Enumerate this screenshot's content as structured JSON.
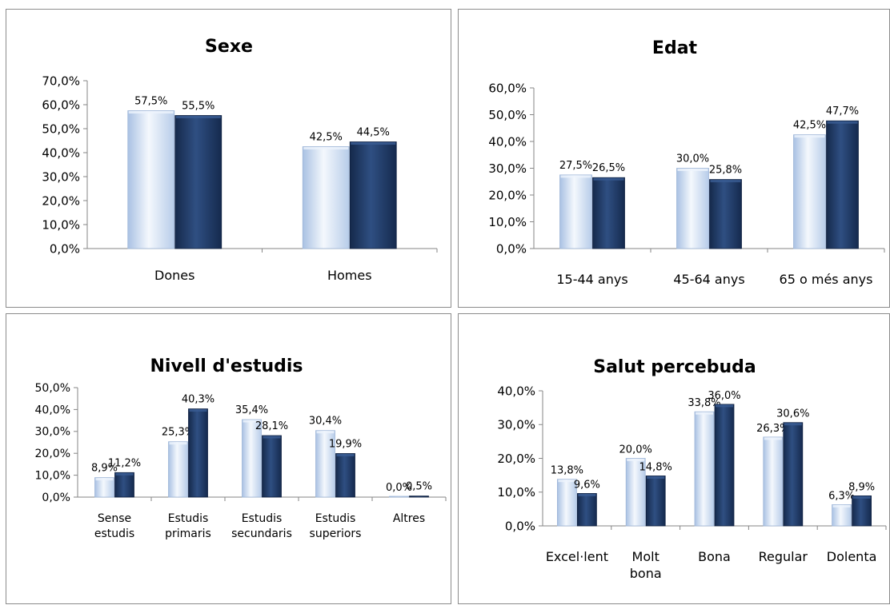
{
  "colors": {
    "series_light": "#c6d9f1",
    "series_dark": "#1f3864",
    "axis": "#868686",
    "border": "#8c8c8c"
  },
  "chart_data": [
    {
      "type": "bar",
      "title": "Sexe",
      "categories": [
        "Dones",
        "Homes"
      ],
      "series": [
        {
          "values": [
            57.5,
            42.5
          ],
          "labels": [
            "57,5%",
            "42,5%"
          ]
        },
        {
          "values": [
            55.5,
            44.5
          ],
          "labels": [
            "55,5%",
            "44,5%"
          ]
        }
      ],
      "ylim": [
        0,
        70
      ],
      "yticks": [
        "0,0%",
        "10,0%",
        "20,0%",
        "30,0%",
        "40,0%",
        "50,0%",
        "60,0%",
        "70,0%"
      ],
      "grid": false,
      "legend": "none"
    },
    {
      "type": "bar",
      "title": "Edat",
      "categories": [
        "15-44 anys",
        "45-64 anys",
        "65 o més anys"
      ],
      "series": [
        {
          "values": [
            27.5,
            30.0,
            42.5
          ],
          "labels": [
            "27,5%",
            "30,0%",
            "42,5%"
          ]
        },
        {
          "values": [
            26.5,
            25.8,
            47.7
          ],
          "labels": [
            "26,5%",
            "25,8%",
            "47,7%"
          ]
        }
      ],
      "ylim": [
        0,
        60
      ],
      "yticks": [
        "0,0%",
        "10,0%",
        "20,0%",
        "30,0%",
        "40,0%",
        "50,0%",
        "60,0%"
      ],
      "grid": false,
      "legend": "none"
    },
    {
      "type": "bar",
      "title": "Nivell d'estudis",
      "categories": [
        [
          "Sense",
          "estudis"
        ],
        [
          "Estudis",
          "primaris"
        ],
        [
          "Estudis",
          "secundaris"
        ],
        [
          "Estudis",
          "superiors"
        ],
        [
          "Altres"
        ]
      ],
      "series": [
        {
          "values": [
            8.9,
            25.3,
            35.4,
            30.4,
            0.0
          ],
          "labels": [
            "8,9%",
            "25,3%",
            "35,4%",
            "30,4%",
            "0,0%"
          ]
        },
        {
          "values": [
            11.2,
            40.3,
            28.1,
            19.9,
            0.5
          ],
          "labels": [
            "11,2%",
            "40,3%",
            "28,1%",
            "19,9%",
            "0,5%"
          ]
        }
      ],
      "ylim": [
        0,
        50
      ],
      "yticks": [
        "0,0%",
        "10,0%",
        "20,0%",
        "30,0%",
        "40,0%",
        "50,0%"
      ],
      "grid": false,
      "legend": "none"
    },
    {
      "type": "bar",
      "title": "Salut percebuda",
      "categories": [
        [
          "Excel·lent"
        ],
        [
          "Molt",
          "bona"
        ],
        [
          "Bona"
        ],
        [
          "Regular"
        ],
        [
          "Dolenta"
        ]
      ],
      "series": [
        {
          "values": [
            13.8,
            20.0,
            33.8,
            26.3,
            6.3
          ],
          "labels": [
            "13,8%",
            "20,0%",
            "33,8%",
            "26,3%",
            "6,3%"
          ]
        },
        {
          "values": [
            9.6,
            14.8,
            36.0,
            30.6,
            8.9
          ],
          "labels": [
            "9,6%",
            "14,8%",
            "36,0%",
            "30,6%",
            "8,9%"
          ]
        }
      ],
      "ylim": [
        0,
        40
      ],
      "yticks": [
        "0,0%",
        "10,0%",
        "20,0%",
        "30,0%",
        "40,0%"
      ],
      "grid": false,
      "legend": "none"
    }
  ]
}
